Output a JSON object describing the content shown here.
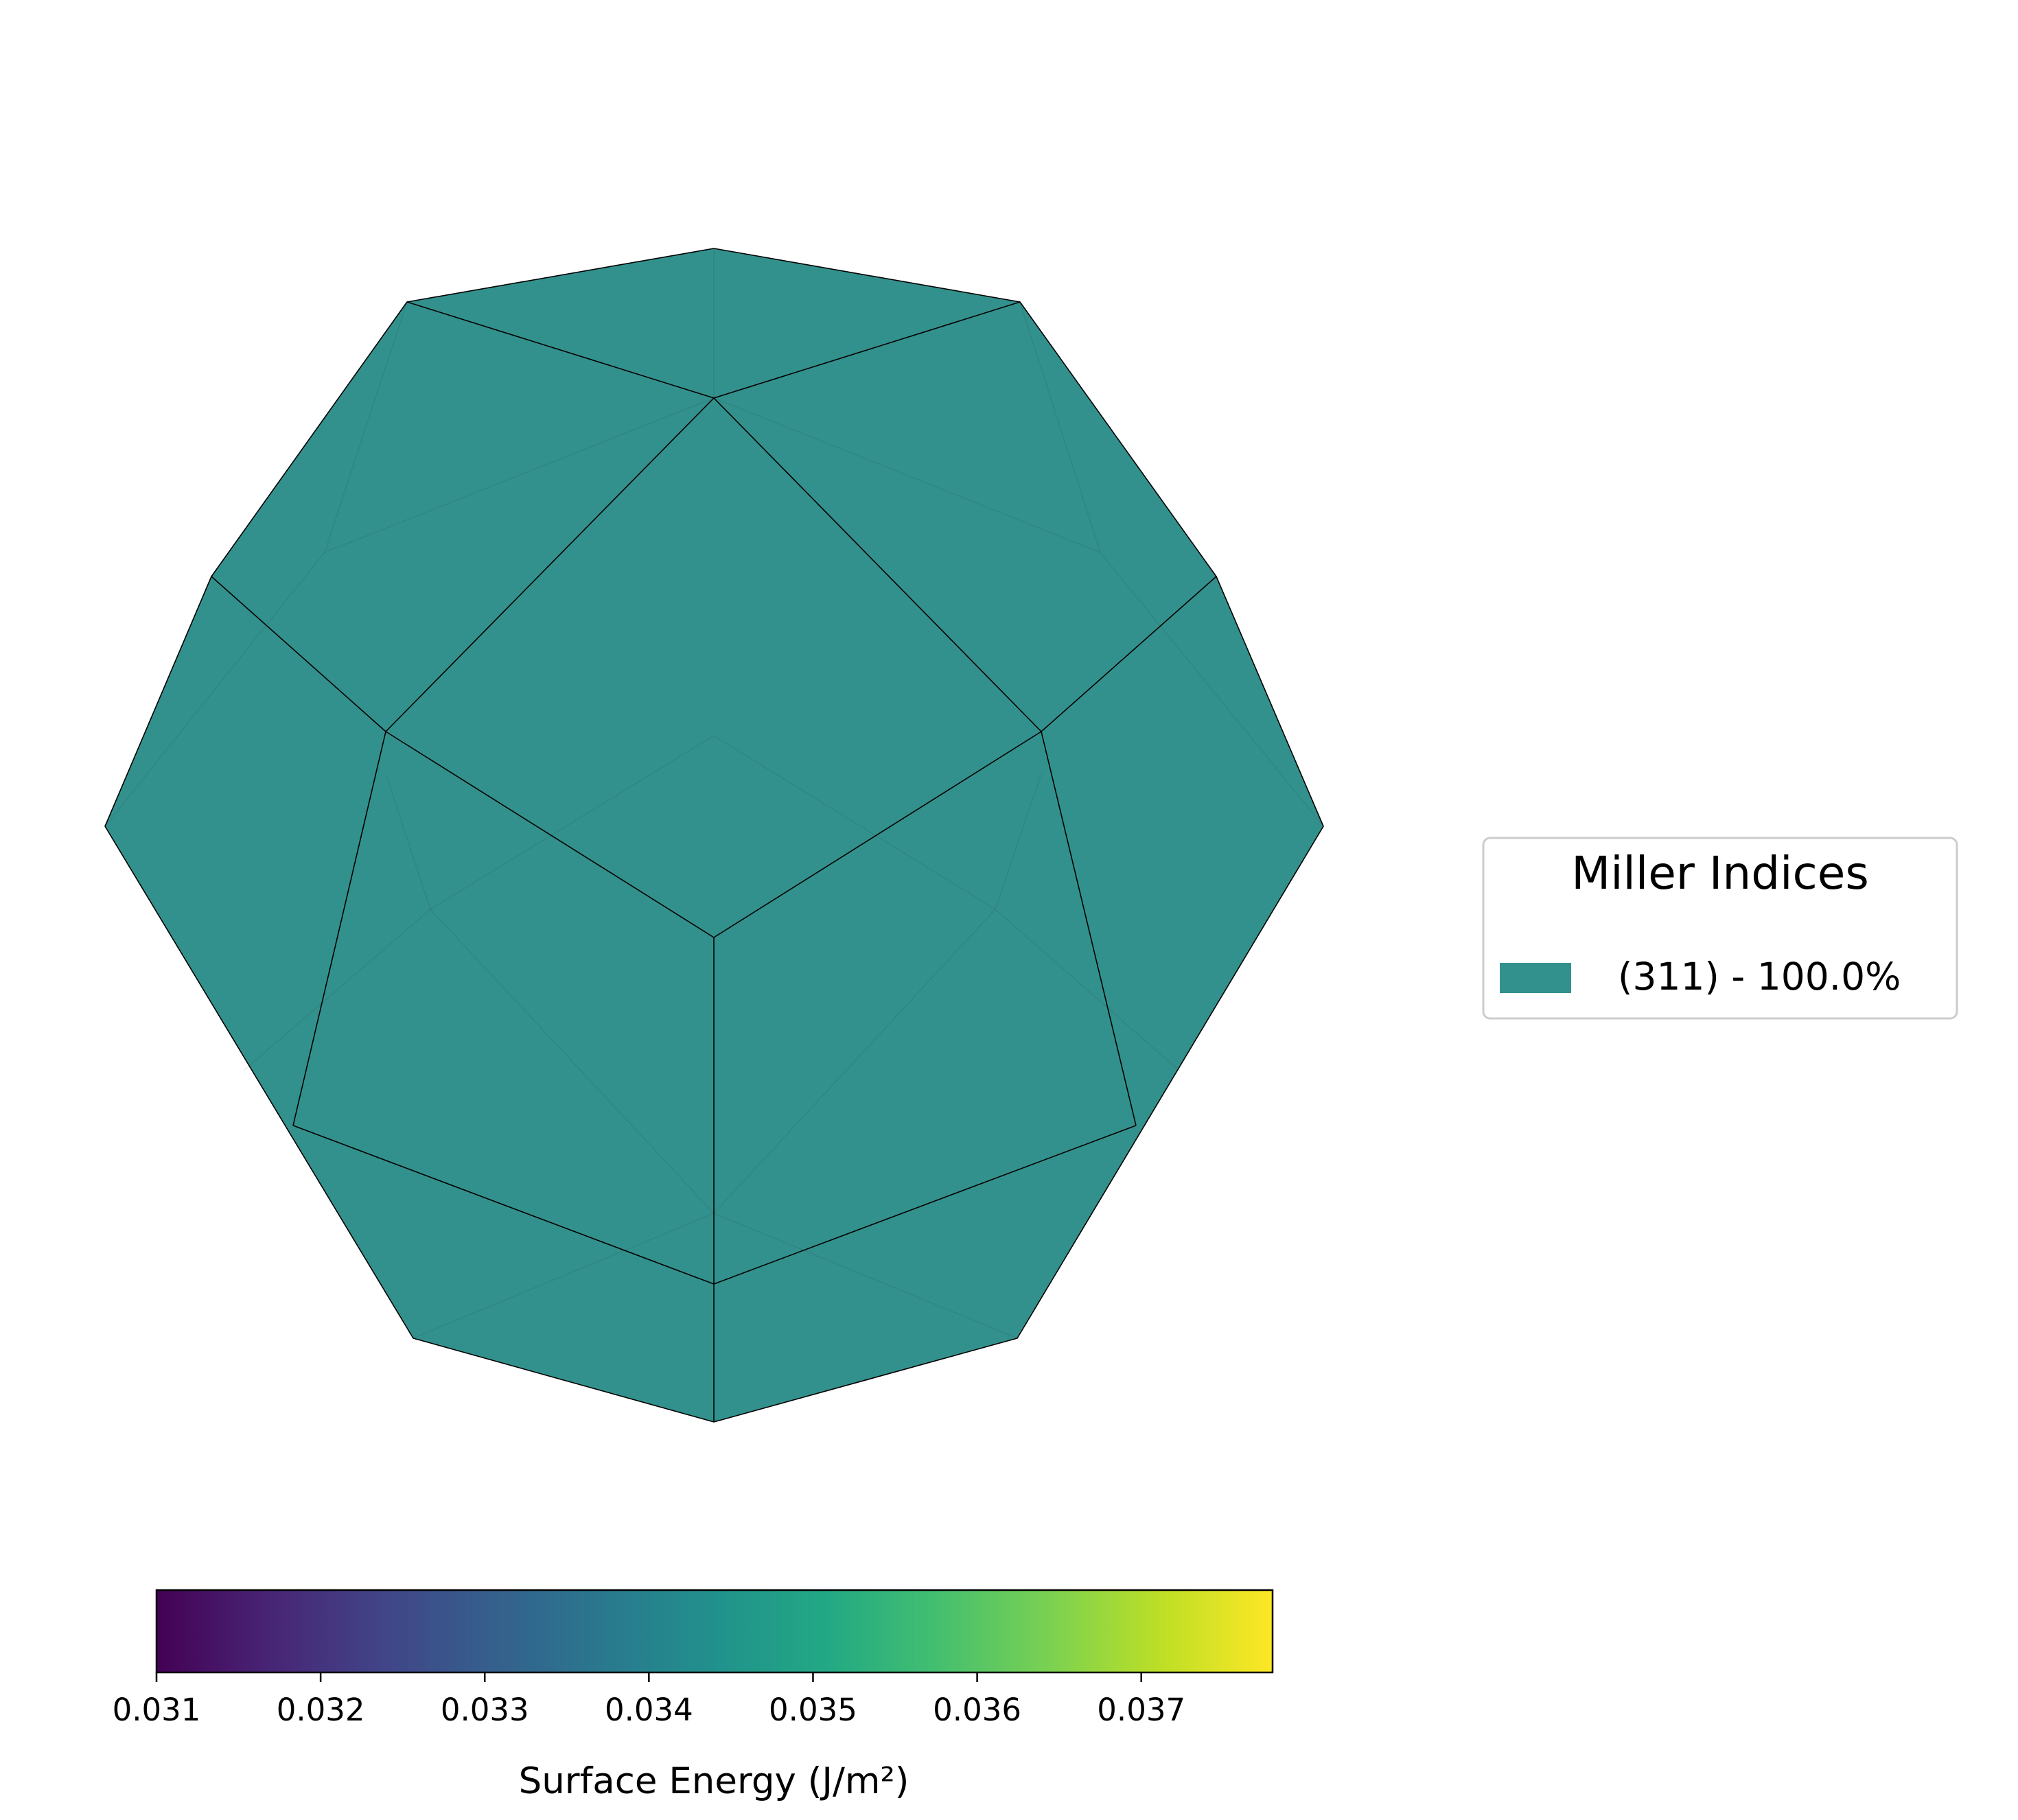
{
  "chart_data": {
    "type": "wulff-shape",
    "facets": [
      {
        "miller_index": "(311)",
        "area_percent": 100.0,
        "surface_energy": 0.0345,
        "color": "#33918d"
      }
    ],
    "legend": {
      "title": "Miller Indices",
      "entries": [
        "(311) - 100.0%"
      ],
      "placement": "right"
    },
    "colorbar": {
      "label": "Surface Energy (J/m²)",
      "colormap": "viridis",
      "range": [
        0.031,
        0.0378
      ],
      "ticks": [
        "0.031",
        "0.032",
        "0.033",
        "0.034",
        "0.035",
        "0.036",
        "0.037"
      ],
      "placement": "bottom"
    },
    "colors": {
      "edge": "#000000",
      "legend_border": "#cccccc"
    }
  }
}
